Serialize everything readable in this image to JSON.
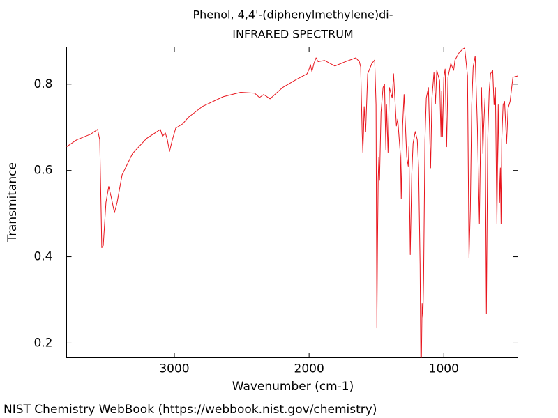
{
  "chart_data": {
    "type": "line",
    "title": "Phenol, 4,4'-(diphenylmethylene)di-",
    "subtitle": "INFRARED SPECTRUM",
    "x_label": "Wavenumber (cm-1)",
    "y_label": "Transmitance",
    "source": "NIST Chemistry WebBook (https://webbook.nist.gov/chemistry)",
    "color": "#e8141c",
    "xlim": [
      3800,
      450
    ],
    "ylim": [
      0.166,
      0.886
    ],
    "xticks": [
      3000,
      2000,
      1000
    ],
    "yticks": [
      0.2,
      0.4,
      0.6,
      0.8
    ],
    "x": [
      3800,
      3725,
      3622,
      3570,
      3554,
      3544,
      3539,
      3528,
      3508,
      3487,
      3466,
      3445,
      3425,
      3388,
      3311,
      3207,
      3104,
      3088,
      3067,
      3052,
      3036,
      3015,
      2990,
      2938,
      2896,
      2793,
      2637,
      2508,
      2404,
      2368,
      2337,
      2290,
      2197,
      2093,
      2015,
      2000,
      1990,
      1979,
      1964,
      1948,
      1933,
      1886,
      1808,
      1731,
      1653,
      1627,
      1617,
      1606,
      1601,
      1596,
      1591,
      1580,
      1565,
      1534,
      1513,
      1503,
      1497,
      1492,
      1487,
      1482,
      1477,
      1466,
      1451,
      1440,
      1430,
      1425,
      1414,
      1404,
      1383,
      1373,
      1352,
      1342,
      1321,
      1316,
      1306,
      1295,
      1275,
      1264,
      1259,
      1249,
      1238,
      1228,
      1212,
      1197,
      1187,
      1176,
      1171,
      1166,
      1161,
      1155,
      1150,
      1140,
      1130,
      1114,
      1098,
      1088,
      1073,
      1062,
      1052,
      1031,
      1021,
      1016,
      1010,
      1000,
      990,
      979,
      969,
      948,
      927,
      917,
      886,
      860,
      845,
      824,
      813,
      803,
      793,
      782,
      767,
      751,
      736,
      725,
      720,
      710,
      705,
      694,
      684,
      674,
      663,
      653,
      637,
      627,
      617,
      606,
      596,
      586,
      580,
      575,
      570,
      560,
      549,
      534,
      523,
      508,
      487,
      451
    ],
    "values": [
      0.655,
      0.671,
      0.684,
      0.695,
      0.671,
      0.51,
      0.421,
      0.426,
      0.526,
      0.563,
      0.534,
      0.502,
      0.526,
      0.59,
      0.639,
      0.674,
      0.695,
      0.679,
      0.687,
      0.671,
      0.644,
      0.671,
      0.698,
      0.708,
      0.723,
      0.748,
      0.771,
      0.781,
      0.779,
      0.769,
      0.776,
      0.766,
      0.792,
      0.811,
      0.824,
      0.835,
      0.845,
      0.829,
      0.848,
      0.861,
      0.852,
      0.855,
      0.842,
      0.852,
      0.861,
      0.852,
      0.84,
      0.687,
      0.642,
      0.687,
      0.748,
      0.69,
      0.824,
      0.848,
      0.856,
      0.752,
      0.235,
      0.429,
      0.582,
      0.631,
      0.577,
      0.735,
      0.792,
      0.8,
      0.647,
      0.752,
      0.642,
      0.792,
      0.768,
      0.824,
      0.703,
      0.719,
      0.631,
      0.534,
      0.703,
      0.776,
      0.631,
      0.61,
      0.655,
      0.405,
      0.59,
      0.663,
      0.69,
      0.671,
      0.606,
      0.381,
      0.166,
      0.166,
      0.292,
      0.26,
      0.348,
      0.671,
      0.768,
      0.792,
      0.606,
      0.768,
      0.827,
      0.755,
      0.832,
      0.808,
      0.679,
      0.784,
      0.679,
      0.816,
      0.835,
      0.655,
      0.816,
      0.848,
      0.832,
      0.856,
      0.873,
      0.881,
      0.884,
      0.819,
      0.397,
      0.51,
      0.752,
      0.84,
      0.865,
      0.703,
      0.477,
      0.719,
      0.792,
      0.639,
      0.695,
      0.768,
      0.268,
      0.671,
      0.784,
      0.824,
      0.832,
      0.752,
      0.792,
      0.477,
      0.752,
      0.526,
      0.606,
      0.477,
      0.671,
      0.752,
      0.76,
      0.663,
      0.744,
      0.76,
      0.816,
      0.819
    ]
  }
}
